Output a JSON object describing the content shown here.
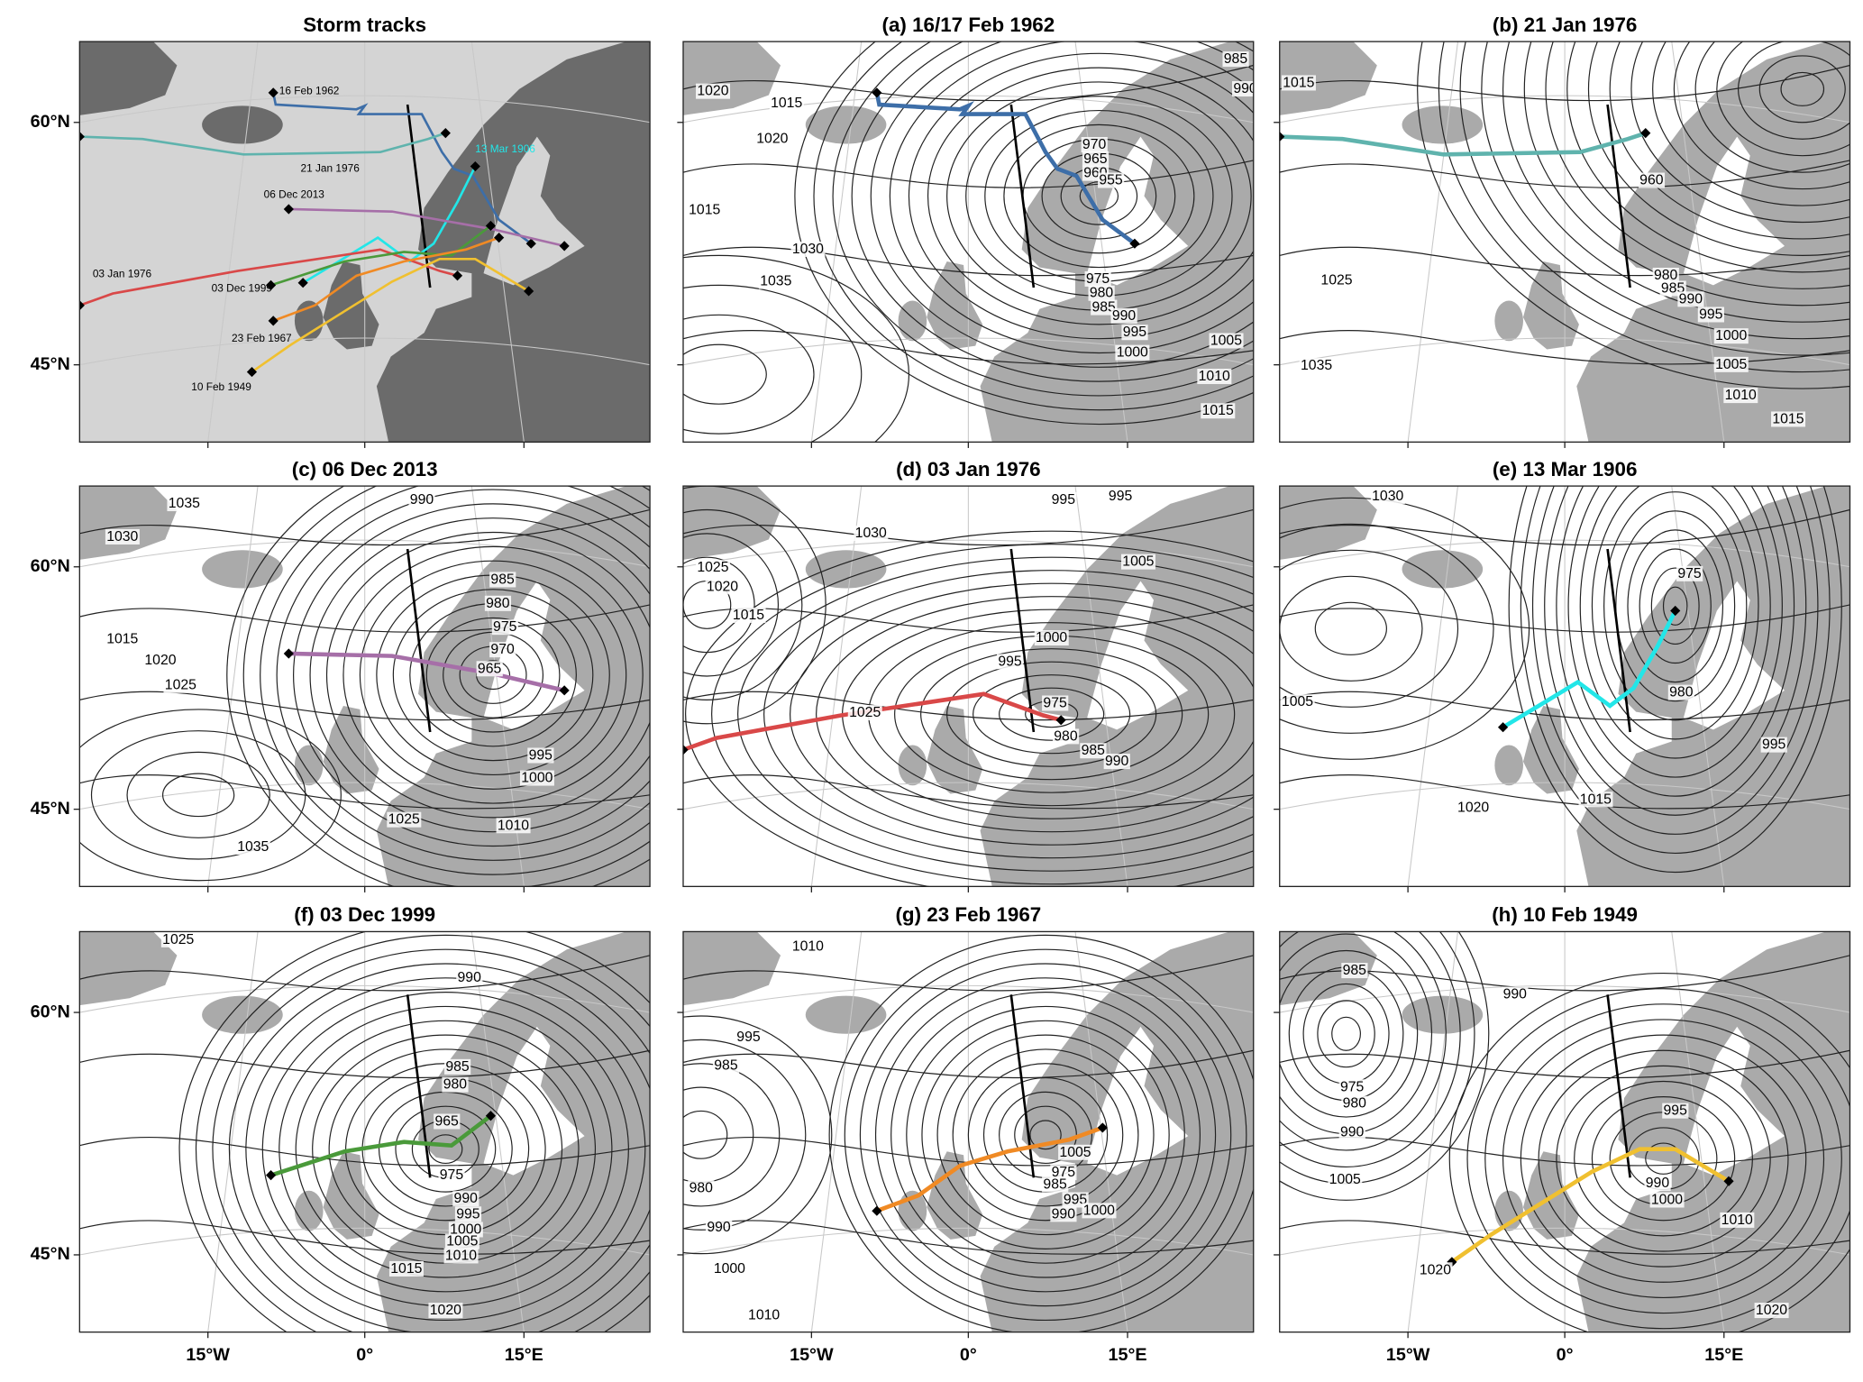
{
  "lat_labels": [
    "60°N",
    "45°N"
  ],
  "lon_labels": [
    "15°W",
    "0°",
    "15°E"
  ],
  "panels": [
    {
      "title": "Storm tracks",
      "tracks": [
        {
          "label": "16 Feb 1962",
          "color": "#3d6ea8"
        },
        {
          "label": "21 Jan 1976",
          "color": "#5fb3ad"
        },
        {
          "label": "13 Mar 1906",
          "color": "#22e6e8"
        },
        {
          "label": "06 Dec 2013",
          "color": "#a66fa8"
        },
        {
          "label": "03 Jan 1976",
          "color": "#d94848"
        },
        {
          "label": "03 Dec 1999",
          "color": "#4a9a3a"
        },
        {
          "label": "23 Feb 1967",
          "color": "#f08a24"
        },
        {
          "label": "10 Feb 1949",
          "color": "#f0c030"
        }
      ]
    },
    {
      "title": "(a) 16/17 Feb 1962",
      "contour_labels": [
        "1020",
        "1015",
        "1020",
        "1015",
        "1030",
        "1035",
        "985",
        "990",
        "970",
        "965",
        "960",
        "955",
        "975",
        "980",
        "985",
        "990",
        "995",
        "1000",
        "1005",
        "1010",
        "1015"
      ]
    },
    {
      "title": "(b) 21 Jan 1976",
      "contour_labels": [
        "1015",
        "960",
        "980",
        "985",
        "990",
        "995",
        "1000",
        "1005",
        "1010",
        "1015",
        "1025",
        "1035"
      ]
    },
    {
      "title": "(c) 06 Dec 2013",
      "contour_labels": [
        "1035",
        "1030",
        "990",
        "985",
        "980",
        "975",
        "970",
        "965",
        "1015",
        "1020",
        "1025",
        "995",
        "1000",
        "1010",
        "1025",
        "1035"
      ]
    },
    {
      "title": "(d) 03 Jan 1976",
      "contour_labels": [
        "995",
        "995",
        "1030",
        "1025",
        "1020",
        "1015",
        "1005",
        "1000",
        "995",
        "975",
        "980",
        "985",
        "990",
        "1025"
      ]
    },
    {
      "title": "(e) 13 Mar 1906",
      "contour_labels": [
        "1030",
        "975",
        "980",
        "1005",
        "995",
        "1015",
        "1020"
      ]
    },
    {
      "title": "(f) 03 Dec 1999",
      "contour_labels": [
        "1025",
        "990",
        "985",
        "980",
        "965",
        "975",
        "990",
        "995",
        "1000",
        "1005",
        "1010",
        "1015",
        "1020"
      ]
    },
    {
      "title": "(g) 23 Feb 1967",
      "contour_labels": [
        "1010",
        "995",
        "985",
        "980",
        "990",
        "1000",
        "1010",
        "975",
        "985",
        "990",
        "995",
        "1000",
        "1005"
      ]
    },
    {
      "title": "(h) 10 Feb 1949",
      "contour_labels": [
        "985",
        "990",
        "975",
        "980",
        "990",
        "1005",
        "995",
        "990",
        "1000",
        "1010",
        "1020",
        "1020"
      ]
    }
  ]
}
